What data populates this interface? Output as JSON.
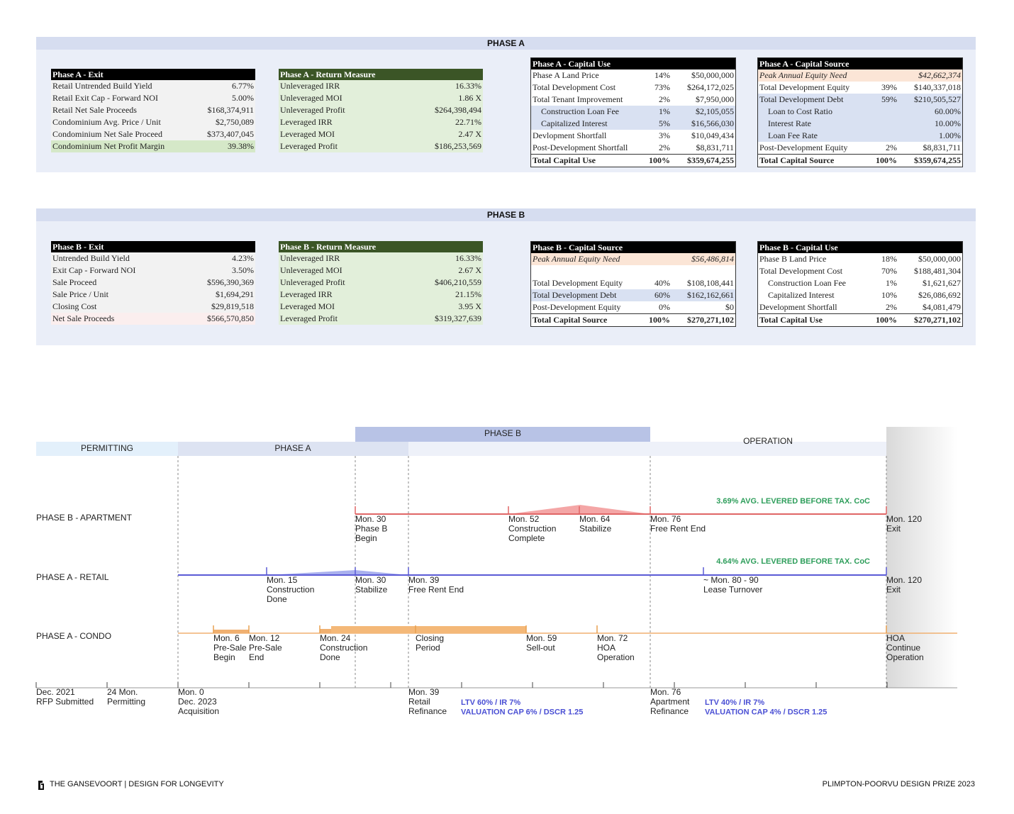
{
  "phase_a": {
    "title": "PHASE A",
    "tables": [
      {
        "title": "Phase A - Exit",
        "rows": [
          [
            "Retail Untrended Build Yield",
            "6.77%"
          ],
          [
            "Retail Exit Cap - Forward NOI",
            "5.00%"
          ],
          [
            "Retail Net Sale Proceeds",
            "$168,374,911"
          ],
          [
            "Condominium Avg. Price / Unit",
            "$2,750,089"
          ],
          [
            "Condominium Net Sale Proceed",
            "$373,407,045"
          ],
          [
            "Condominium Net Profit Margin",
            "39.38%"
          ]
        ]
      },
      {
        "title": "Phase A - Return Measure",
        "rows": [
          [
            "Unleveraged IRR",
            "16.33%"
          ],
          [
            "Unleveraged MOI",
            "1.86 X"
          ],
          [
            "Unleveraged Profit",
            "$264,398,494"
          ],
          [
            "Leveraged IRR",
            "22.71%"
          ],
          [
            "Leveraged MOI",
            "2.47 X"
          ],
          [
            "Leveraged Profit",
            "$186,253,569"
          ]
        ]
      },
      {
        "title": "Phase A - Capital Use",
        "rows": [
          [
            "Phase A Land Price",
            "14%",
            "$50,000,000"
          ],
          [
            "Total Development Cost",
            "73%",
            "$264,172,025"
          ],
          [
            "Total Tenant Improvement",
            "2%",
            "$7,950,000"
          ],
          [
            "Construction Loan Fee",
            "1%",
            "$2,105,055"
          ],
          [
            "Capitalized Interest",
            "5%",
            "$16,566,030"
          ],
          [
            "Devlopment Shortfall",
            "3%",
            "$10,049,434"
          ],
          [
            "Post-Development Shortfall",
            "2%",
            "$8,831,711"
          ],
          [
            "Total Capital Use",
            "100%",
            "$359,674,255"
          ]
        ]
      },
      {
        "title": "Phase A - Capital Source",
        "rows": [
          [
            "Peak Annual Equity Need",
            "$42,662,374"
          ],
          [
            "Total Development Equity",
            "39%",
            "$140,337,018"
          ],
          [
            "Total Development Debt",
            "59%",
            "$210,505,527"
          ],
          [
            "Loan to Cost Ratio",
            "60.00%"
          ],
          [
            "Interest Rate",
            "10.00%"
          ],
          [
            "Loan Fee Rate",
            "1.00%"
          ],
          [
            "Post-Development Equity",
            "2%",
            "$8,831,711"
          ],
          [
            "Total Capital Source",
            "100%",
            "$359,674,255"
          ]
        ]
      }
    ]
  },
  "phase_b": {
    "title": "PHASE B",
    "tables": [
      {
        "title": "Phase B - Exit",
        "rows": [
          [
            "Untrended Build Yield",
            "4.23%"
          ],
          [
            "Exit Cap - Forward NOI",
            "3.50%"
          ],
          [
            "Sale Proceed",
            "$596,390,369"
          ],
          [
            "Sale Price / Unit",
            "$1,694,291"
          ],
          [
            "Closing Cost",
            "$29,819,518"
          ],
          [
            "Net Sale Proceeds",
            "$566,570,850"
          ]
        ]
      },
      {
        "title": "Phase B - Return Measure",
        "rows": [
          [
            "Unleveraged IRR",
            "16.33%"
          ],
          [
            "Unleveraged MOI",
            "2.67 X"
          ],
          [
            "Unleveraged Profit",
            "$406,210,559"
          ],
          [
            "Leveraged IRR",
            "21.15%"
          ],
          [
            "Leveraged MOI",
            "3.95 X"
          ],
          [
            "Leveraged Profit",
            "$319,327,639"
          ]
        ]
      },
      {
        "title": "Phase B - Capital Source",
        "rows": [
          [
            "Peak Annual Equity Need",
            "$56,486,814"
          ],
          [
            "Total Development Equity",
            "40%",
            "$108,108,441"
          ],
          [
            "Total Development Debt",
            "60%",
            "$162,162,661"
          ],
          [
            "Post-Development Equity",
            "0%",
            "$0"
          ],
          [
            "Total Capital Source",
            "100%",
            "$270,271,102"
          ]
        ]
      },
      {
        "title": "Phase B - Capital Use",
        "rows": [
          [
            "Phase B Land Price",
            "18%",
            "$50,000,000"
          ],
          [
            "Total Development Cost",
            "70%",
            "$188,481,304"
          ],
          [
            "Construction Loan Fee",
            "1%",
            "$1,621,627"
          ],
          [
            "Capitalized Interest",
            "10%",
            "$26,086,692"
          ],
          [
            "Development Shortfall",
            "2%",
            "$4,081,479"
          ],
          [
            "Total Capital Use",
            "100%",
            "$270,271,102"
          ]
        ]
      }
    ]
  },
  "timeline": {
    "bands": [
      "PERMITTING",
      "PHASE A",
      "PHASE B",
      "OPERATION"
    ],
    "rows": [
      {
        "label": "PHASE B - APARTMENT",
        "note": "3.69% AVG. LEVERED BEFORE TAX. CoC",
        "milestones": [
          [
            "Mon. 30",
            "Phase B",
            "Begin"
          ],
          [
            "Mon. 52",
            "Construction",
            "Complete"
          ],
          [
            "Mon. 64",
            "Stabilize"
          ],
          [
            "Mon. 76",
            "Free Rent End"
          ],
          [
            "Mon. 120",
            "Exit"
          ]
        ]
      },
      {
        "label": "PHASE A - RETAIL",
        "note": "4.64% AVG. LEVERED BEFORE TAX. CoC",
        "milestones": [
          [
            "Mon. 15",
            "Construction",
            "Done"
          ],
          [
            "Mon. 30",
            "Stabilize"
          ],
          [
            "Mon. 39",
            "Free Rent End"
          ],
          [
            "~ Mon. 80 - 90",
            "Lease Turnover"
          ],
          [
            "Mon. 120",
            "Exit"
          ]
        ]
      },
      {
        "label": "PHASE A - CONDO",
        "milestones": [
          [
            "Mon. 6",
            "Pre-Sale",
            "Begin"
          ],
          [
            "Mon. 12",
            "Pre-Sale",
            "End"
          ],
          [
            "Mon. 24",
            "Construction",
            "Done"
          ],
          [
            "Closing",
            "Period"
          ],
          [
            "Mon. 59",
            "Sell-out"
          ],
          [
            "Mon. 72",
            "HOA",
            "Operation"
          ],
          [
            "HOA",
            "Continue",
            "Operation"
          ]
        ]
      }
    ],
    "axis_labels": [
      [
        "Dec. 2021",
        "RFP Submitted"
      ],
      [
        "24 Mon.",
        "Permitting"
      ],
      [
        "Mon. 0",
        "Dec. 2023",
        "Acquisition"
      ],
      [
        "Mon. 39",
        "Retail",
        "Refinance"
      ],
      [
        "Mon. 76",
        "Apartment",
        "Refinance"
      ]
    ],
    "refinance_terms": [
      [
        "LTV 60% / IR 7%",
        "VALUATION CAP 6% / DSCR 1.25"
      ],
      [
        "LTV 40% / IR 7%",
        "VALUATION CAP 4% / DSCR 1.25"
      ]
    ]
  },
  "footer": {
    "left": "THE GANSEVOORT | DESIGN FOR LONGEVITY",
    "right": "PLIMPTON-POORVU DESIGN PRIZE 2023"
  }
}
